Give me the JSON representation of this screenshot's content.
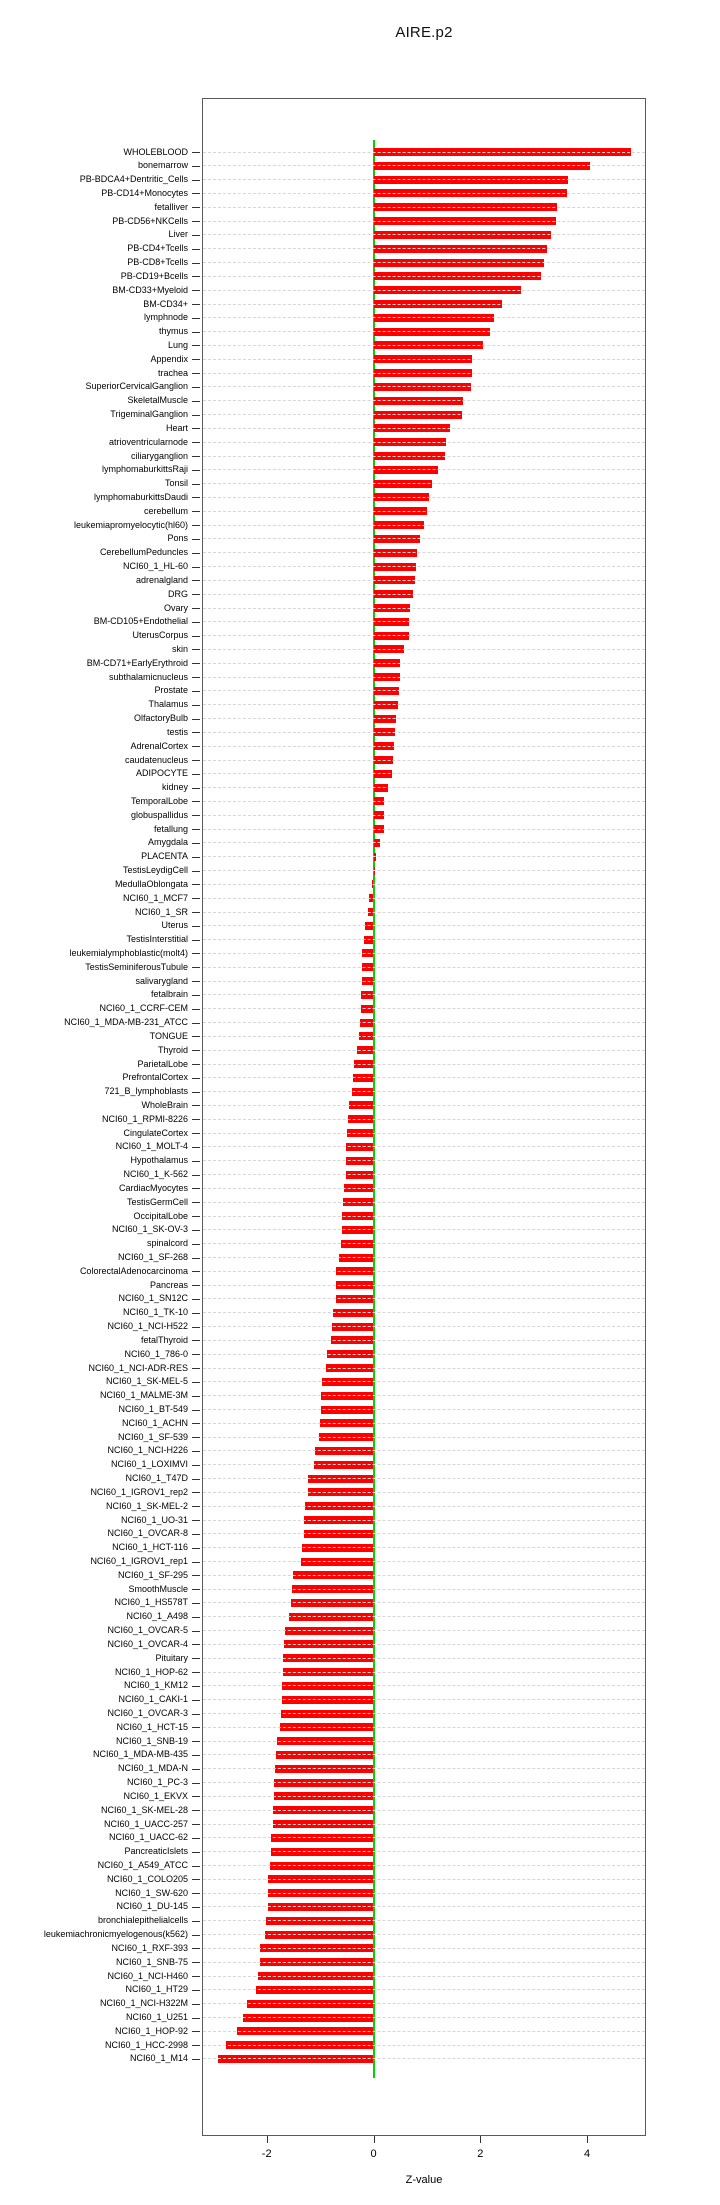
{
  "title": "AIRE.p2",
  "xlabel": "Z-value",
  "colors": {
    "bar": "#ff0000",
    "zero_line": "#00d300",
    "gridline": "#d6d6d6",
    "box_border": "#5a5a5a"
  },
  "chart_data": {
    "type": "bar",
    "orientation": "horizontal",
    "title": "AIRE.p2",
    "xlabel": "Z-value",
    "xlim": [
      -3.2,
      5.1
    ],
    "xticks": [
      -2,
      0,
      2,
      4
    ],
    "grid": "dashed-horizontal",
    "legend": "none",
    "zero_line_color": "#00d300",
    "bar_color": "#ff0000",
    "categories": [
      "WHOLEBLOOD",
      "bonemarrow",
      "PB-BDCA4+Dentritic_Cells",
      "PB-CD14+Monocytes",
      "fetalliver",
      "PB-CD56+NKCells",
      "Liver",
      "PB-CD4+Tcells",
      "PB-CD8+Tcells",
      "PB-CD19+Bcells",
      "BM-CD33+Myeloid",
      "BM-CD34+",
      "lymphnode",
      "thymus",
      "Lung",
      "Appendix",
      "trachea",
      "SuperiorCervicalGanglion",
      "SkeletalMuscle",
      "TrigeminalGanglion",
      "Heart",
      "atrioventricularnode",
      "ciliaryganglion",
      "lymphomaburkittsRaji",
      "Tonsil",
      "lymphomaburkittsDaudi",
      "cerebellum",
      "leukemiapromyelocytic(hl60)",
      "Pons",
      "CerebellumPeduncles",
      "NCI60_1_HL-60",
      "adrenalgland",
      "DRG",
      "Ovary",
      "BM-CD105+Endothelial",
      "UterusCorpus",
      "skin",
      "BM-CD71+EarlyErythroid",
      "subthalamicnucleus",
      "Prostate",
      "Thalamus",
      "OlfactoryBulb",
      "testis",
      "AdrenalCortex",
      "caudatenucleus",
      "ADIPOCYTE",
      "kidney",
      "TemporalLobe",
      "globuspallidus",
      "fetallung",
      "Amygdala",
      "PLACENTA",
      "TestisLeydigCell",
      "MedullaOblongata",
      "NCI60_1_MCF7",
      "NCI60_1_SR",
      "Uterus",
      "TestisInterstitial",
      "leukemialymphoblastic(molt4)",
      "TestisSeminiferousTubule",
      "salivarygland",
      "fetalbrain",
      "NCI60_1_CCRF-CEM",
      "NCI60_1_MDA-MB-231_ATCC",
      "TONGUE",
      "Thyroid",
      "ParietalLobe",
      "PrefrontalCortex",
      "721_B_lymphoblasts",
      "WholeBrain",
      "NCI60_1_RPMI-8226",
      "CingulateCortex",
      "NCI60_1_MOLT-4",
      "Hypothalamus",
      "NCI60_1_K-562",
      "CardiacMyocytes",
      "TestisGermCell",
      "OccipitalLobe",
      "NCI60_1_SK-OV-3",
      "spinalcord",
      "NCI60_1_SF-268",
      "ColorectalAdenocarcinoma",
      "Pancreas",
      "NCI60_1_SN12C",
      "NCI60_1_TK-10",
      "NCI60_1_NCI-H522",
      "fetalThyroid",
      "NCI60_1_786-0",
      "NCI60_1_NCI-ADR-RES",
      "NCI60_1_SK-MEL-5",
      "NCI60_1_MALME-3M",
      "NCI60_1_BT-549",
      "NCI60_1_ACHN",
      "NCI60_1_SF-539",
      "NCI60_1_NCI-H226",
      "NCI60_1_LOXIMVI",
      "NCI60_1_T47D",
      "NCI60_1_IGROV1_rep2",
      "NCI60_1_SK-MEL-2",
      "NCI60_1_UO-31",
      "NCI60_1_OVCAR-8",
      "NCI60_1_HCT-116",
      "NCI60_1_IGROV1_rep1",
      "NCI60_1_SF-295",
      "SmoothMuscle",
      "NCI60_1_HS578T",
      "NCI60_1_A498",
      "NCI60_1_OVCAR-5",
      "NCI60_1_OVCAR-4",
      "Pituitary",
      "NCI60_1_HOP-62",
      "NCI60_1_KM12",
      "NCI60_1_CAKI-1",
      "NCI60_1_OVCAR-3",
      "NCI60_1_HCT-15",
      "NCI60_1_SNB-19",
      "NCI60_1_MDA-MB-435",
      "NCI60_1_MDA-N",
      "NCI60_1_PC-3",
      "NCI60_1_EKVX",
      "NCI60_1_SK-MEL-28",
      "NCI60_1_UACC-257",
      "NCI60_1_UACC-62",
      "PancreaticIslets",
      "NCI60_1_A549_ATCC",
      "NCI60_1_COLO205",
      "NCI60_1_SW-620",
      "NCI60_1_DU-145",
      "bronchialepithelialcells",
      "leukemiachronicmyelogenous(k562)",
      "NCI60_1_RXF-393",
      "NCI60_1_SNB-75",
      "NCI60_1_NCI-H460",
      "NCI60_1_HT29",
      "NCI60_1_NCI-H322M",
      "NCI60_1_U251",
      "NCI60_1_HOP-92",
      "NCI60_1_HCC-2998",
      "NCI60_1_M14"
    ],
    "values": [
      4.83,
      4.05,
      3.65,
      3.62,
      3.43,
      3.41,
      3.33,
      3.25,
      3.19,
      3.14,
      2.77,
      2.41,
      2.25,
      2.18,
      2.05,
      1.85,
      1.84,
      1.83,
      1.68,
      1.66,
      1.44,
      1.36,
      1.34,
      1.21,
      1.09,
      1.04,
      1.01,
      0.94,
      0.87,
      0.82,
      0.8,
      0.77,
      0.74,
      0.69,
      0.67,
      0.66,
      0.57,
      0.5,
      0.5,
      0.48,
      0.46,
      0.43,
      0.41,
      0.39,
      0.36,
      0.35,
      0.27,
      0.2,
      0.19,
      0.19,
      0.13,
      0.04,
      0.03,
      -0.02,
      -0.08,
      -0.1,
      -0.16,
      -0.17,
      -0.21,
      -0.22,
      -0.22,
      -0.23,
      -0.24,
      -0.26,
      -0.27,
      -0.3,
      -0.37,
      -0.39,
      -0.4,
      -0.45,
      -0.48,
      -0.49,
      -0.51,
      -0.51,
      -0.52,
      -0.56,
      -0.57,
      -0.59,
      -0.59,
      -0.6,
      -0.64,
      -0.7,
      -0.7,
      -0.71,
      -0.75,
      -0.78,
      -0.8,
      -0.88,
      -0.89,
      -0.96,
      -0.98,
      -0.99,
      -1.0,
      -1.02,
      -1.09,
      -1.12,
      -1.22,
      -1.23,
      -1.28,
      -1.3,
      -1.31,
      -1.34,
      -1.35,
      -1.5,
      -1.53,
      -1.54,
      -1.58,
      -1.65,
      -1.67,
      -1.69,
      -1.7,
      -1.71,
      -1.71,
      -1.73,
      -1.76,
      -1.81,
      -1.82,
      -1.84,
      -1.86,
      -1.86,
      -1.88,
      -1.88,
      -1.92,
      -1.92,
      -1.93,
      -1.97,
      -1.98,
      -1.98,
      -2.01,
      -2.04,
      -2.12,
      -2.13,
      -2.16,
      -2.2,
      -2.36,
      -2.45,
      -2.56,
      -2.77,
      -2.91
    ]
  }
}
